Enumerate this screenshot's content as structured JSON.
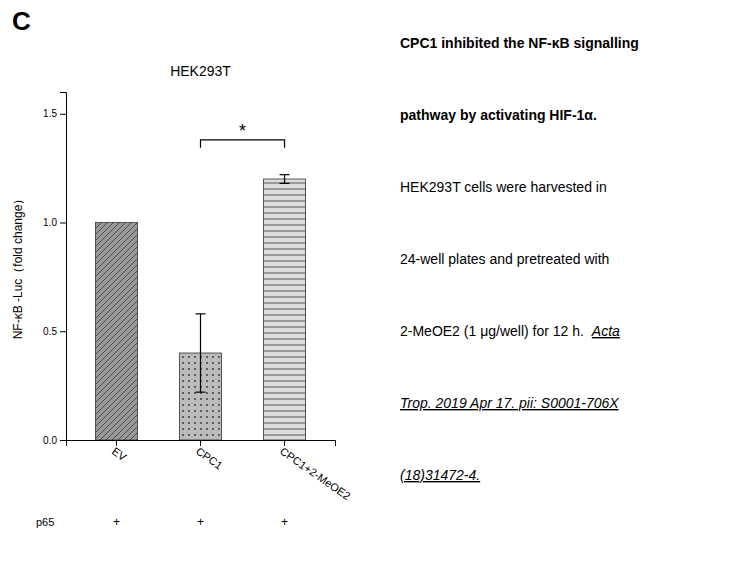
{
  "chart_data": {
    "type": "bar",
    "title": "HEK293T",
    "panel_label": "C",
    "categories": [
      "EV",
      "CPC1",
      "CPC1+2-MeOE2"
    ],
    "values": [
      1.0,
      0.4,
      1.2
    ],
    "errors": [
      0.0,
      0.18,
      0.02
    ],
    "colors": [
      "#999999",
      "#bbbbbb",
      "#dddddd"
    ],
    "ylabel": "NF-κB -Luc（fold change）",
    "ylim": [
      0,
      1.6
    ],
    "yticks": [
      {
        "value": 0.0,
        "label": "0.0"
      },
      0.5,
      {
        "value": 1.0,
        "label": "1.0"
      },
      1.5
    ],
    "grid": false,
    "rows": [
      {
        "name": "p65",
        "labels": [
          "+",
          "+",
          "+"
        ]
      }
    ],
    "significance": [
      {
        "pair": [
          "CPC1",
          "CPC1+2-MeOE2"
        ],
        "y": 1.38,
        "label": "*"
      }
    ],
    "annotations": [
      [
        "CPC1 inhibited the NF-κB signalling"
      ],
      [
        "pathway by activating HIF-1α."
      ],
      [
        "HEK293T cells were harvested in"
      ],
      [
        "24-well plates and pretreated with"
      ],
      [
        "2-MeOE2 (1 μg/well) for 12 h. ",
        "Acta"
      ],
      [
        "Trop. 2019 Apr 17. pii: S0001-706X"
      ],
      [
        "(18)31472-4."
      ]
    ]
  }
}
